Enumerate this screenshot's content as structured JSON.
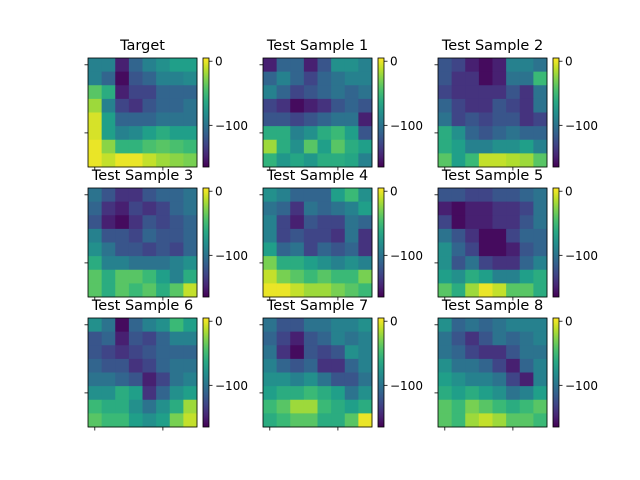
{
  "figure": {
    "colormap": "viridis",
    "colorbar_ticks": [
      {
        "value": 0,
        "label": "0"
      },
      {
        "value": -100,
        "label": "−100"
      }
    ]
  },
  "chart_data": [
    {
      "type": "heatmap",
      "title": "Target",
      "vmin": -165,
      "vmax": 5,
      "values": [
        [
          -90,
          -90,
          -150,
          -110,
          -90,
          -80,
          -70,
          -70
        ],
        [
          -90,
          -110,
          -160,
          -120,
          -110,
          -90,
          -90,
          -85
        ],
        [
          -40,
          -60,
          -150,
          -130,
          -130,
          -110,
          -110,
          -110
        ],
        [
          -20,
          -90,
          -130,
          -140,
          -120,
          -110,
          -110,
          -100
        ],
        [
          -5,
          -70,
          -110,
          -110,
          -110,
          -100,
          -100,
          -100
        ],
        [
          -5,
          -70,
          -90,
          -85,
          -70,
          -60,
          -70,
          -70
        ],
        [
          0,
          -25,
          -55,
          -55,
          -45,
          -40,
          -45,
          -50
        ],
        [
          0,
          -10,
          0,
          0,
          -10,
          -20,
          -25,
          -30
        ]
      ]
    },
    {
      "type": "heatmap",
      "title": "Test Sample 1",
      "vmin": -165,
      "vmax": 5,
      "values": [
        [
          -150,
          -110,
          -110,
          -150,
          -120,
          -80,
          -80,
          -90
        ],
        [
          -110,
          -90,
          -110,
          -130,
          -110,
          -100,
          -90,
          -90
        ],
        [
          -90,
          -110,
          -130,
          -120,
          -110,
          -100,
          -110,
          -100
        ],
        [
          -130,
          -140,
          -160,
          -150,
          -140,
          -120,
          -110,
          -120
        ],
        [
          -120,
          -120,
          -130,
          -120,
          -110,
          -100,
          -100,
          -150
        ],
        [
          -60,
          -60,
          -90,
          -80,
          -60,
          -50,
          -70,
          -120
        ],
        [
          -20,
          -60,
          -80,
          -40,
          -70,
          -40,
          -60,
          -70
        ],
        [
          -55,
          -75,
          -65,
          -75,
          -60,
          -60,
          -65,
          -90
        ]
      ]
    },
    {
      "type": "heatmap",
      "title": "Test Sample 2",
      "vmin": -165,
      "vmax": 5,
      "values": [
        [
          -120,
          -130,
          -150,
          -160,
          -150,
          -90,
          -90,
          -100
        ],
        [
          -120,
          -140,
          -140,
          -160,
          -150,
          -100,
          -100,
          -50
        ],
        [
          -130,
          -140,
          -140,
          -140,
          -140,
          -120,
          -140,
          -100
        ],
        [
          -110,
          -130,
          -140,
          -140,
          -120,
          -130,
          -140,
          -100
        ],
        [
          -100,
          -130,
          -120,
          -130,
          -120,
          -120,
          -140,
          -130
        ],
        [
          -60,
          -80,
          -110,
          -120,
          -110,
          -100,
          -110,
          -110
        ],
        [
          -60,
          -70,
          -90,
          -90,
          -80,
          -80,
          -70,
          -90
        ],
        [
          -40,
          -70,
          -50,
          -10,
          -10,
          -15,
          -20,
          -40
        ]
      ]
    },
    {
      "type": "heatmap",
      "title": "Test Sample 3",
      "vmin": -165,
      "vmax": 5,
      "values": [
        [
          -100,
          -120,
          -140,
          -140,
          -120,
          -110,
          -110,
          -100
        ],
        [
          -110,
          -140,
          -150,
          -130,
          -140,
          -130,
          -110,
          -100
        ],
        [
          -120,
          -150,
          -160,
          -140,
          -120,
          -130,
          -120,
          -110
        ],
        [
          -90,
          -120,
          -120,
          -130,
          -110,
          -120,
          -120,
          -110
        ],
        [
          -80,
          -100,
          -120,
          -120,
          -130,
          -120,
          -130,
          -110
        ],
        [
          -60,
          -90,
          -90,
          -100,
          -100,
          -100,
          -90,
          -80
        ],
        [
          -40,
          -60,
          -40,
          -40,
          -50,
          -70,
          -90,
          -60
        ],
        [
          -40,
          -60,
          -40,
          -50,
          -40,
          -60,
          -40,
          -10
        ]
      ]
    },
    {
      "type": "heatmap",
      "title": "Test Sample 4",
      "vmin": -165,
      "vmax": 5,
      "values": [
        [
          -80,
          -90,
          -110,
          -110,
          -110,
          -70,
          -50,
          -80
        ],
        [
          -100,
          -110,
          -140,
          -100,
          -110,
          -100,
          -90,
          -70
        ],
        [
          -90,
          -130,
          -150,
          -120,
          -130,
          -130,
          -100,
          -110
        ],
        [
          -90,
          -130,
          -120,
          -130,
          -130,
          -140,
          -100,
          -140
        ],
        [
          -70,
          -110,
          -100,
          -130,
          -110,
          -120,
          -110,
          -140
        ],
        [
          -30,
          -60,
          -60,
          -70,
          -80,
          -90,
          -80,
          -90
        ],
        [
          -10,
          -30,
          -40,
          -50,
          -40,
          -50,
          -50,
          -30
        ],
        [
          0,
          0,
          -10,
          -20,
          -20,
          -30,
          -40,
          -50
        ]
      ]
    },
    {
      "type": "heatmap",
      "title": "Test Sample 5",
      "vmin": -165,
      "vmax": 5,
      "values": [
        [
          -120,
          -120,
          -130,
          -130,
          -120,
          -120,
          -110,
          -100
        ],
        [
          -150,
          -160,
          -150,
          -150,
          -140,
          -140,
          -130,
          -100
        ],
        [
          -130,
          -160,
          -150,
          -150,
          -140,
          -140,
          -120,
          -100
        ],
        [
          -100,
          -120,
          -140,
          -160,
          -160,
          -130,
          -110,
          -110
        ],
        [
          -80,
          -110,
          -130,
          -160,
          -160,
          -150,
          -120,
          -110
        ],
        [
          -80,
          -120,
          -100,
          -130,
          -140,
          -140,
          -110,
          -90
        ],
        [
          -70,
          -80,
          -60,
          -70,
          -90,
          -90,
          -70,
          -60
        ],
        [
          -40,
          -60,
          -20,
          0,
          -10,
          -40,
          -40,
          -60
        ]
      ]
    },
    {
      "type": "heatmap",
      "title": "Test Sample 6",
      "vmin": -165,
      "vmax": 5,
      "values": [
        [
          -80,
          -100,
          -160,
          -110,
          -90,
          -80,
          -50,
          -70
        ],
        [
          -120,
          -110,
          -150,
          -120,
          -130,
          -110,
          -90,
          -90
        ],
        [
          -120,
          -130,
          -140,
          -130,
          -120,
          -110,
          -110,
          -110
        ],
        [
          -110,
          -120,
          -120,
          -140,
          -130,
          -110,
          -100,
          -100
        ],
        [
          -100,
          -100,
          -110,
          -120,
          -150,
          -130,
          -100,
          -90
        ],
        [
          -80,
          -80,
          -60,
          -70,
          -140,
          -110,
          -80,
          -70
        ],
        [
          -50,
          -60,
          -60,
          -80,
          -100,
          -80,
          -60,
          -20
        ],
        [
          -40,
          -50,
          -50,
          -70,
          -80,
          -70,
          -30,
          -10
        ]
      ]
    },
    {
      "type": "heatmap",
      "title": "Test Sample 7",
      "vmin": -165,
      "vmax": 5,
      "values": [
        [
          -100,
          -120,
          -120,
          -100,
          -100,
          -90,
          -90,
          -80
        ],
        [
          -110,
          -130,
          -150,
          -120,
          -110,
          -90,
          -100,
          -90
        ],
        [
          -100,
          -140,
          -160,
          -120,
          -130,
          -120,
          -80,
          -90
        ],
        [
          -90,
          -110,
          -120,
          -110,
          -140,
          -140,
          -110,
          -90
        ],
        [
          -80,
          -80,
          -90,
          -80,
          -100,
          -120,
          -120,
          -100
        ],
        [
          -70,
          -60,
          -60,
          -50,
          -60,
          -70,
          -100,
          -80
        ],
        [
          -50,
          -40,
          -20,
          -20,
          -50,
          -60,
          -70,
          -60
        ],
        [
          -60,
          -50,
          -40,
          -40,
          -60,
          -60,
          -40,
          0
        ]
      ]
    },
    {
      "type": "heatmap",
      "title": "Test Sample 8",
      "vmin": -165,
      "vmax": 5,
      "values": [
        [
          -80,
          -110,
          -100,
          -110,
          -100,
          -90,
          -90,
          -90
        ],
        [
          -100,
          -120,
          -140,
          -120,
          -100,
          -110,
          -100,
          -90
        ],
        [
          -100,
          -110,
          -130,
          -140,
          -140,
          -120,
          -100,
          -100
        ],
        [
          -80,
          -100,
          -100,
          -110,
          -130,
          -150,
          -110,
          -90
        ],
        [
          -70,
          -80,
          -90,
          -90,
          -100,
          -130,
          -150,
          -90
        ],
        [
          -60,
          -70,
          -60,
          -70,
          -80,
          -100,
          -90,
          -70
        ],
        [
          -40,
          -50,
          -30,
          -40,
          -50,
          -60,
          -50,
          -40
        ],
        [
          -40,
          -50,
          -20,
          -10,
          -20,
          -40,
          -40,
          -50
        ]
      ]
    }
  ]
}
